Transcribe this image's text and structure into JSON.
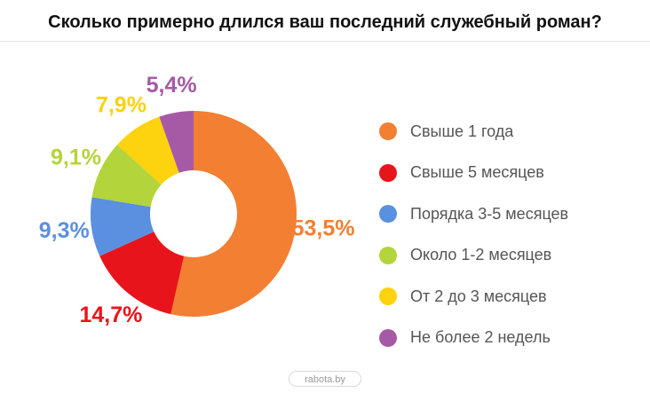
{
  "chart_data": {
    "type": "pie",
    "title": "Сколько примерно длился ваш последний служебный роман?",
    "categories": [
      "Свыше 1 года",
      "Свыше 5 месяцев",
      "Порядка 3-5 месяцев",
      "Около 1-2 месяцев",
      "От 2 до 3 месяцев",
      "Не более 2 недель"
    ],
    "values": [
      53.5,
      14.7,
      9.3,
      9.1,
      7.9,
      5.4
    ],
    "labels": [
      "53,5%",
      "14,7%",
      "9,3%",
      "9,1%",
      "7,9%",
      "5,4%"
    ],
    "colors": [
      "#f27f32",
      "#e8141b",
      "#5b8fe0",
      "#b3d43a",
      "#fdd20e",
      "#a65aa6"
    ],
    "donut": true,
    "legend_position": "right"
  },
  "footer": {
    "source": "rabota.by"
  }
}
